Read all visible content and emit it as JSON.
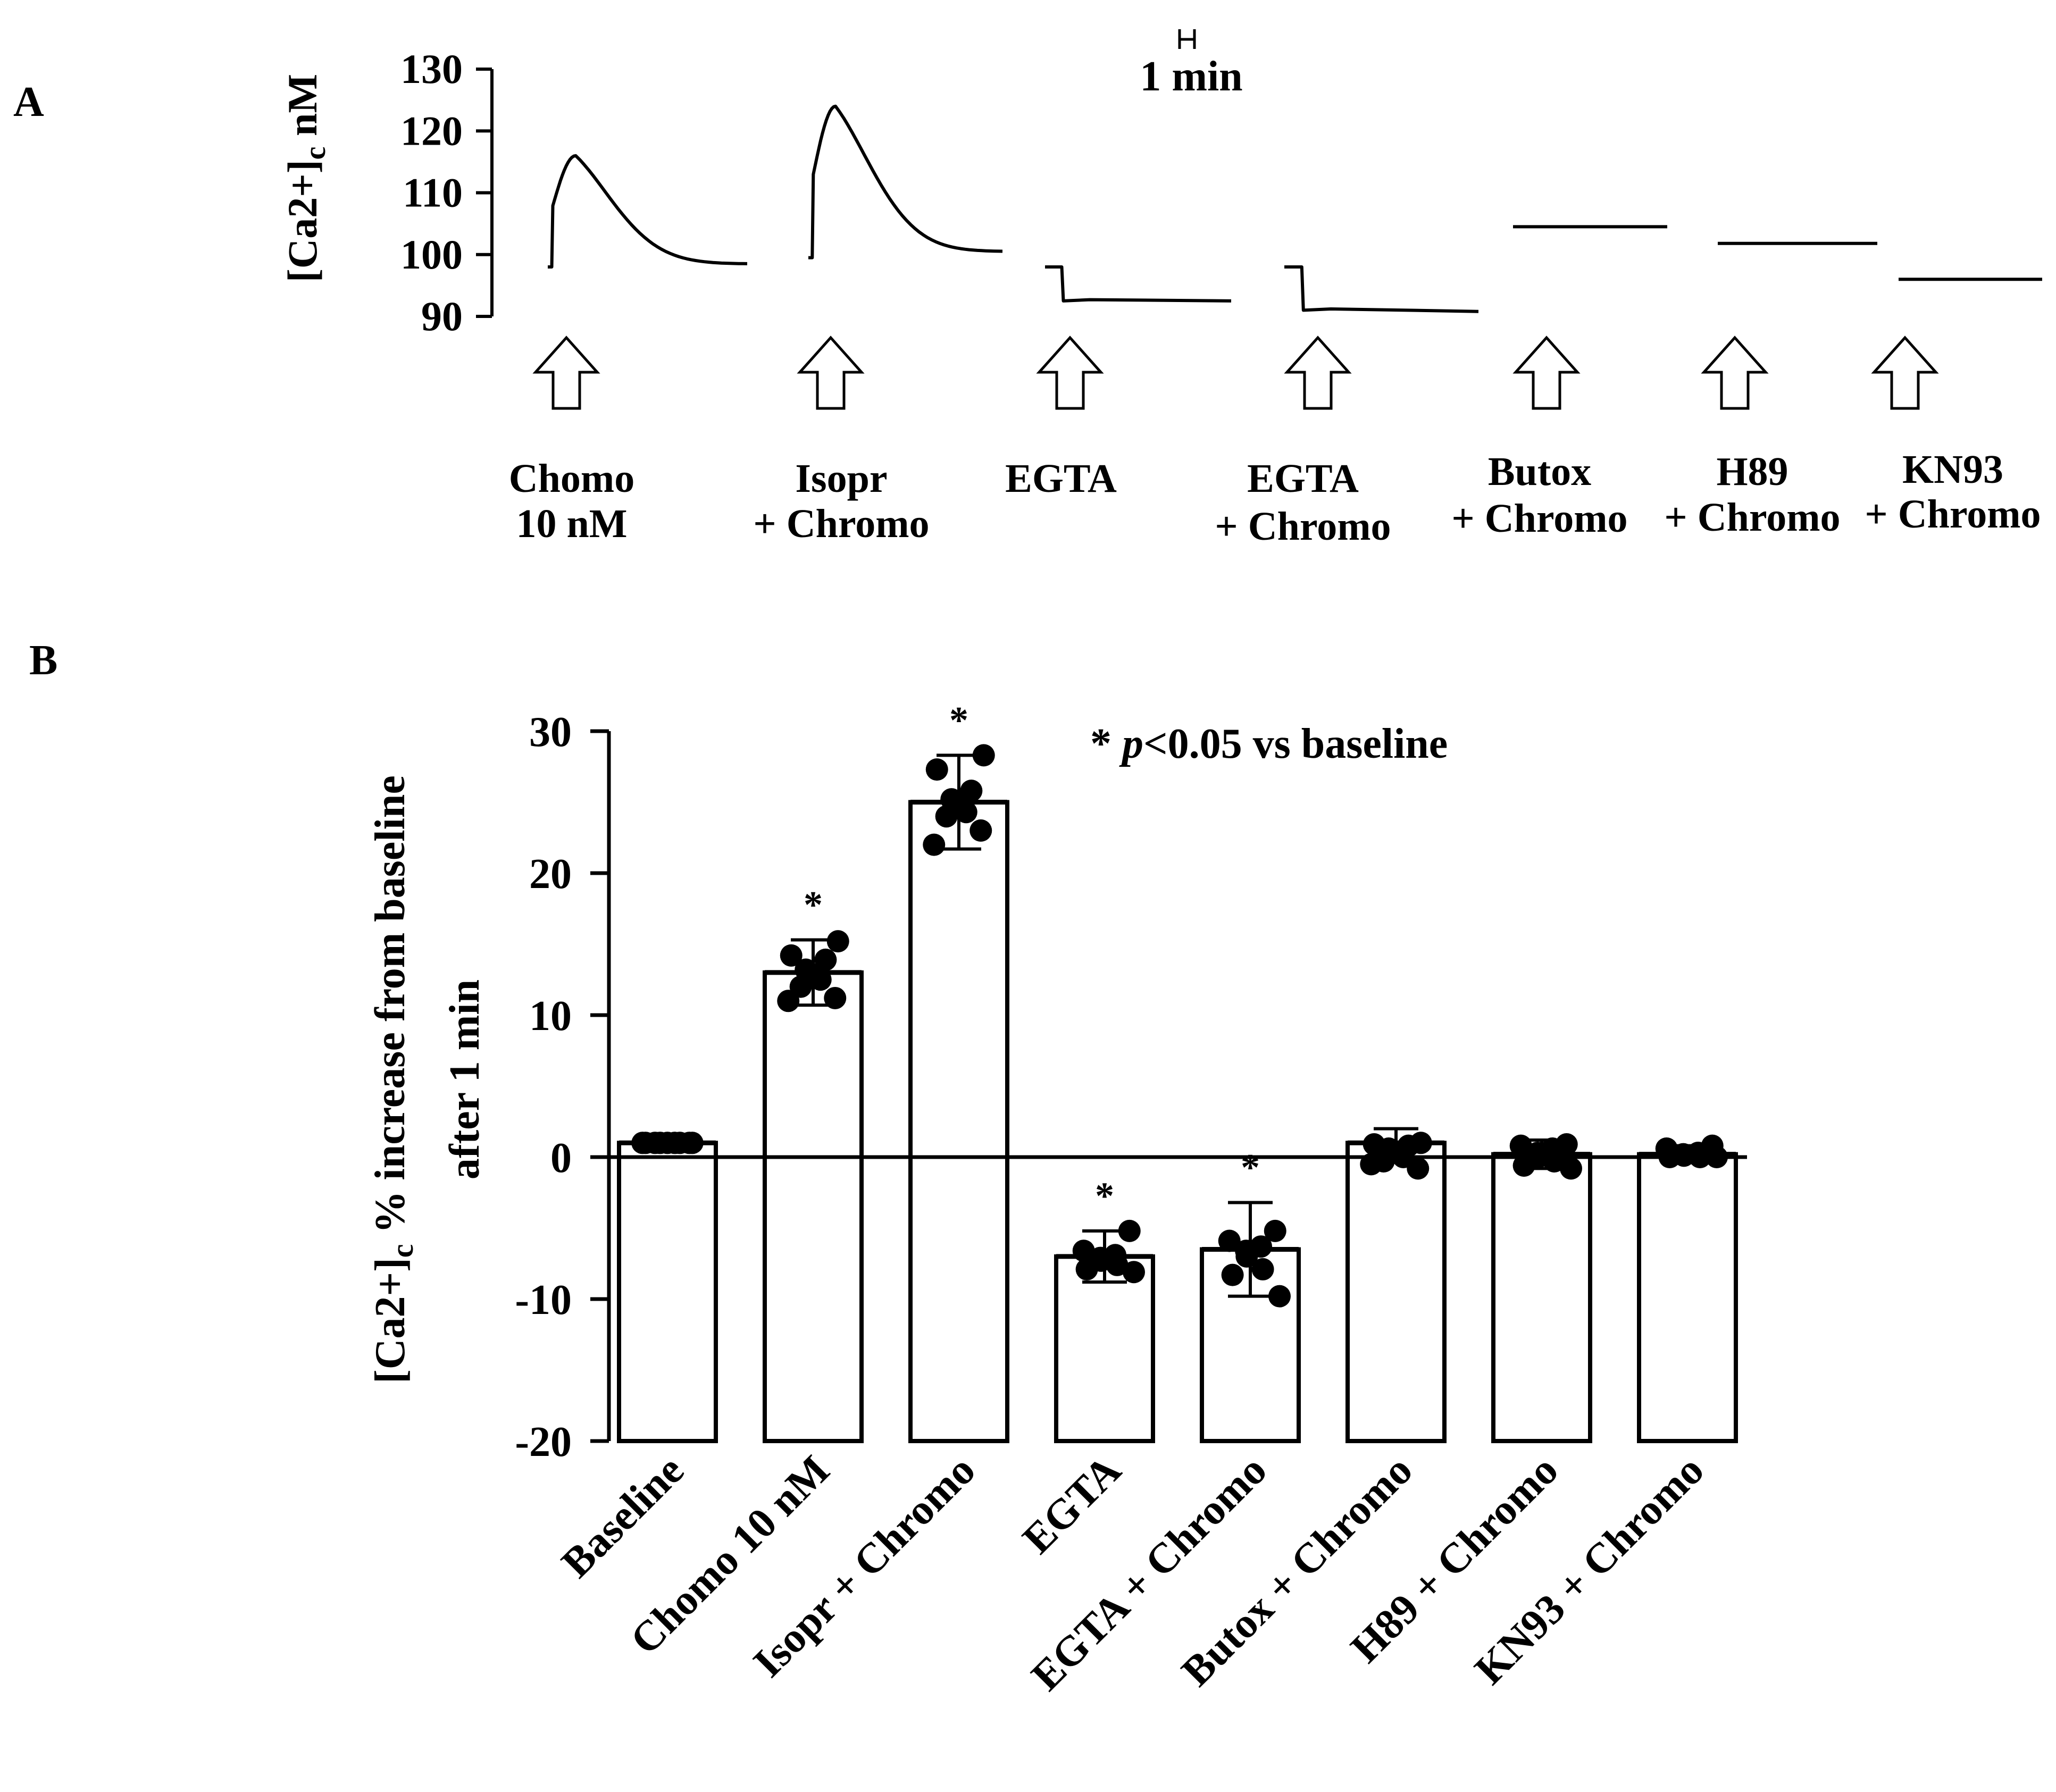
{
  "figure": {
    "panel_a_label": "A",
    "panel_b_label": "B"
  },
  "chart_data": [
    {
      "type": "line",
      "panel": "A",
      "ylabel_main": "[Ca2+]",
      "ylabel_sub": "c",
      "ylabel_unit": " nM",
      "ylim": [
        90,
        130
      ],
      "yticks": [
        90,
        100,
        110,
        120,
        130
      ],
      "scale_bar_label": "1 min",
      "traces": [
        {
          "name": "Chomo",
          "name_line2": "10 nM",
          "baseline": 98,
          "peak": 116,
          "final": 98.5,
          "shape": "peak"
        },
        {
          "name": "Isopr",
          "name_line2": "+ Chromo",
          "baseline": 99.5,
          "peak": 124,
          "final": 100.5,
          "shape": "peak"
        },
        {
          "name": "EGTA",
          "name_line2": "",
          "baseline": 98,
          "peak": 92.5,
          "final": 92.5,
          "shape": "drop"
        },
        {
          "name": "EGTA",
          "name_line2": "+ Chromo",
          "baseline": 98,
          "peak": 91,
          "final": 90.8,
          "shape": "drop"
        },
        {
          "name": "Butox",
          "name_line2": "+ Chromo",
          "baseline": 104.5,
          "peak": 104.5,
          "final": 104.5,
          "shape": "flat"
        },
        {
          "name": "H89",
          "name_line2": "+ Chromo",
          "baseline": 101.8,
          "peak": 101.8,
          "final": 101.8,
          "shape": "flat"
        },
        {
          "name": "KN93",
          "name_line2": "+ Chromo",
          "baseline": 96,
          "peak": 96,
          "final": 96,
          "shape": "flat"
        }
      ]
    },
    {
      "type": "bar",
      "panel": "B",
      "title_star": "*",
      "title_p": "p",
      "title_rest": "<0.05 vs baseline",
      "ylabel_line1_main": "[Ca2+]",
      "ylabel_line1_sub": "c",
      "ylabel_line1_rest": " % increase from baseline",
      "ylabel_line2": "after 1 min",
      "ylim": [
        -20,
        30
      ],
      "yticks": [
        -20,
        -10,
        0,
        10,
        20,
        30
      ],
      "categories": [
        "Baseline",
        "Chomo 10 nM",
        "Isopr + Chromo",
        "EGTA",
        "EGTA + Chromo",
        "Butox + Chromo",
        "H89 + Chromo",
        "KN93 + Chromo"
      ],
      "values": [
        1,
        13,
        25,
        -7,
        -6.5,
        1,
        0.2,
        0.2
      ],
      "errors": [
        0,
        2.3,
        3.3,
        1.8,
        3.3,
        1.0,
        1.0,
        0.6
      ],
      "significant": [
        false,
        true,
        true,
        true,
        true,
        false,
        false,
        false
      ],
      "significance_marker": "*",
      "points": [
        [
          1,
          1,
          1,
          1,
          1,
          1,
          1,
          1,
          1
        ],
        [
          15.2,
          14.2,
          13.9,
          13.2,
          12.8,
          12.5,
          12.0,
          11.2,
          11.0
        ],
        [
          28.3,
          27.3,
          25.8,
          25.2,
          25.0,
          24.3,
          24.0,
          23.0,
          22.0
        ],
        [
          -5.2,
          -6.6,
          -6.9,
          -7.1,
          -7.3,
          -7.6,
          -7.9,
          -8.1
        ],
        [
          -5.2,
          -5.9,
          -6.3,
          -6.6,
          -7.0,
          -7.9,
          -8.3,
          -9.8
        ],
        [
          1.0,
          0.9,
          0.8,
          0.6,
          0.3,
          0.0,
          -0.3,
          -0.8,
          -0.5
        ],
        [
          0.9,
          0.8,
          0.6,
          0.3,
          0.0,
          -0.3,
          -0.6,
          -0.8
        ],
        [
          0.8,
          0.6,
          0.3,
          0.2,
          0.1,
          0.0,
          0.0,
          0.0
        ]
      ]
    }
  ]
}
